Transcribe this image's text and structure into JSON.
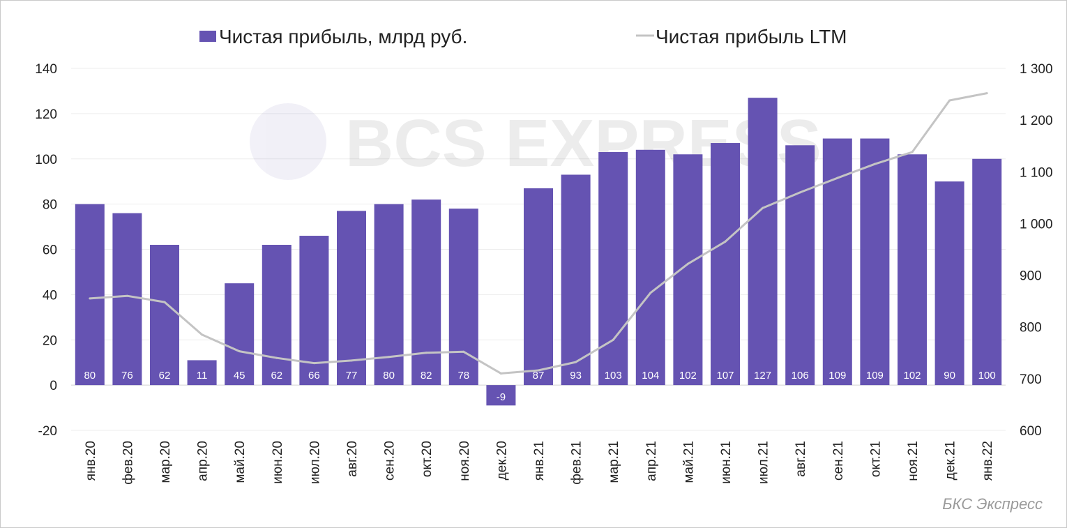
{
  "chart_data": {
    "type": "bar+line",
    "categories": [
      "янв.20",
      "фев.20",
      "мар.20",
      "апр.20",
      "май.20",
      "июн.20",
      "июл.20",
      "авг.20",
      "сен.20",
      "окт.20",
      "ноя.20",
      "дек.20",
      "янв.21",
      "фев.21",
      "мар.21",
      "апр.21",
      "май.21",
      "июн.21",
      "июл.21",
      "авг.21",
      "сен.21",
      "окт.21",
      "ноя.21",
      "дек.21",
      "янв.22"
    ],
    "series": [
      {
        "name": "Чистая прибыль, млрд руб.",
        "type": "bar",
        "axis": "left",
        "color": "#6553b2",
        "values": [
          80,
          76,
          62,
          11,
          45,
          62,
          66,
          77,
          80,
          82,
          78,
          -9,
          87,
          93,
          103,
          104,
          102,
          107,
          127,
          106,
          109,
          109,
          102,
          90,
          100
        ]
      },
      {
        "name": "Чистая прибыль LTM",
        "type": "line",
        "axis": "right",
        "color": "#c4c4c4",
        "values": [
          855,
          860,
          848,
          785,
          753,
          740,
          730,
          735,
          742,
          750,
          752,
          710,
          716,
          732,
          775,
          866,
          922,
          965,
          1030,
          1060,
          1088,
          1115,
          1138,
          1238,
          1252
        ]
      }
    ],
    "y_left": {
      "min": -20,
      "max": 140,
      "step": 20,
      "ticks": [
        "-20",
        "0",
        "20",
        "40",
        "60",
        "80",
        "100",
        "120",
        "140"
      ]
    },
    "y_right": {
      "min": 600,
      "max": 1300,
      "step": 100,
      "ticks": [
        "600",
        "700",
        "800",
        "900",
        "1 000",
        "1 100",
        "1 200",
        "1 300"
      ]
    },
    "data_labels": true,
    "grid": "horizontal",
    "legend_position": "top"
  },
  "watermark": {
    "text": "BCS EXPRESS"
  },
  "source_label": "БКС Экспресс"
}
